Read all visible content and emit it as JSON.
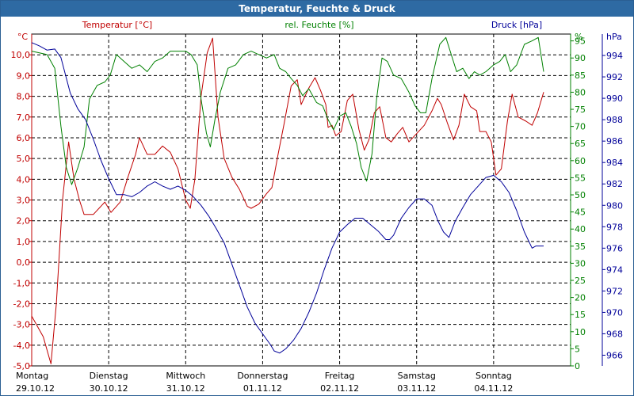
{
  "window": {
    "title": "Temperatur, Feuchte & Druck"
  },
  "chart_data": {
    "type": "line",
    "title": "Temperatur, Feuchte & Druck",
    "colors": {
      "temperature": "#c00000",
      "humidity": "#008000",
      "pressure": "#000099",
      "grid": "#000000"
    },
    "axes": {
      "temperature": {
        "label": "Temperatur [°C]",
        "unit": "°C",
        "ylim": [
          -5.0,
          11.0
        ],
        "ticks": [
          "10,0",
          "9,0",
          "8,0",
          "7,0",
          "6,0",
          "5,0",
          "4,0",
          "3,0",
          "2,0",
          "1,0",
          "0,0",
          "-1,0",
          "-2,0",
          "-3,0",
          "-4,0",
          "-5,0"
        ],
        "tick_values": [
          10,
          9,
          8,
          7,
          6,
          5,
          4,
          3,
          2,
          1,
          0,
          -1,
          -2,
          -3,
          -4,
          -5
        ]
      },
      "humidity": {
        "label": "rel. Feuchte [%]",
        "unit": "%",
        "ylim": [
          0,
          97
        ],
        "ticks": [
          "95",
          "90",
          "85",
          "80",
          "75",
          "70",
          "65",
          "60",
          "55",
          "50",
          "45",
          "40",
          "35",
          "30",
          "25",
          "20",
          "15",
          "10",
          "5",
          "0"
        ],
        "tick_values": [
          95,
          90,
          85,
          80,
          75,
          70,
          65,
          60,
          55,
          50,
          45,
          40,
          35,
          30,
          25,
          20,
          15,
          10,
          5,
          0
        ]
      },
      "pressure": {
        "label": "Druck [hPa]",
        "unit": "hPa",
        "ylim": [
          965,
          996
        ],
        "ticks": [
          "994",
          "992",
          "990",
          "988",
          "986",
          "984",
          "982",
          "980",
          "978",
          "976",
          "974",
          "972",
          "970",
          "968",
          "966"
        ],
        "tick_values": [
          994,
          992,
          990,
          988,
          986,
          984,
          982,
          980,
          978,
          976,
          974,
          972,
          970,
          968,
          966
        ]
      }
    },
    "x": {
      "range": [
        0,
        7
      ],
      "grid": [
        1,
        2,
        3,
        4,
        5,
        6
      ],
      "days": [
        {
          "day": "Montag",
          "date": "29.10.12",
          "pos": 0
        },
        {
          "day": "Dienstag",
          "date": "30.10.12",
          "pos": 1
        },
        {
          "day": "Mittwoch",
          "date": "31.10.12",
          "pos": 2
        },
        {
          "day": "Donnerstag",
          "date": "01.11.12",
          "pos": 3
        },
        {
          "day": "Freitag",
          "date": "02.11.12",
          "pos": 4
        },
        {
          "day": "Samstag",
          "date": "03.11.12",
          "pos": 5
        },
        {
          "day": "Sonntag",
          "date": "04.11.12",
          "pos": 6
        }
      ]
    },
    "series": [
      {
        "name": "Temperatur",
        "axis": "temperature",
        "points": [
          [
            0,
            -2.6
          ],
          [
            0.15,
            -3.6
          ],
          [
            0.25,
            -4.9
          ],
          [
            0.32,
            -2
          ],
          [
            0.4,
            3
          ],
          [
            0.48,
            5.8
          ],
          [
            0.55,
            4
          ],
          [
            0.62,
            3
          ],
          [
            0.68,
            2.3
          ],
          [
            0.8,
            2.3
          ],
          [
            0.95,
            2.9
          ],
          [
            1.03,
            2.4
          ],
          [
            1.15,
            2.9
          ],
          [
            1.25,
            4.1
          ],
          [
            1.35,
            5.2
          ],
          [
            1.4,
            6.0
          ],
          [
            1.5,
            5.2
          ],
          [
            1.6,
            5.2
          ],
          [
            1.7,
            5.6
          ],
          [
            1.8,
            5.3
          ],
          [
            1.9,
            4.5
          ],
          [
            2.0,
            3.0
          ],
          [
            2.06,
            2.6
          ],
          [
            2.12,
            4
          ],
          [
            2.2,
            8
          ],
          [
            2.28,
            10.1
          ],
          [
            2.35,
            10.8
          ],
          [
            2.42,
            7
          ],
          [
            2.5,
            5
          ],
          [
            2.6,
            4.1
          ],
          [
            2.7,
            3.5
          ],
          [
            2.8,
            2.7
          ],
          [
            2.85,
            2.6
          ],
          [
            2.95,
            2.8
          ],
          [
            3.05,
            3.3
          ],
          [
            3.12,
            3.6
          ],
          [
            3.2,
            5.2
          ],
          [
            3.28,
            6.7
          ],
          [
            3.37,
            8.5
          ],
          [
            3.45,
            8.8
          ],
          [
            3.5,
            7.6
          ],
          [
            3.6,
            8.4
          ],
          [
            3.68,
            8.9
          ],
          [
            3.75,
            8.3
          ],
          [
            3.82,
            7.6
          ],
          [
            3.85,
            6.5
          ],
          [
            3.9,
            6.6
          ],
          [
            3.95,
            6.1
          ],
          [
            4.02,
            6.3
          ],
          [
            4.1,
            7.8
          ],
          [
            4.17,
            8.1
          ],
          [
            4.25,
            6.4
          ],
          [
            4.32,
            5.4
          ],
          [
            4.38,
            5.9
          ],
          [
            4.45,
            7.2
          ],
          [
            4.52,
            7.5
          ],
          [
            4.6,
            6.0
          ],
          [
            4.67,
            5.8
          ],
          [
            4.75,
            6.2
          ],
          [
            4.82,
            6.5
          ],
          [
            4.9,
            5.8
          ],
          [
            5.0,
            6.2
          ],
          [
            5.1,
            6.6
          ],
          [
            5.2,
            7.3
          ],
          [
            5.27,
            7.9
          ],
          [
            5.32,
            7.6
          ],
          [
            5.4,
            6.7
          ],
          [
            5.48,
            5.9
          ],
          [
            5.55,
            6.6
          ],
          [
            5.62,
            8.1
          ],
          [
            5.7,
            7.5
          ],
          [
            5.78,
            7.3
          ],
          [
            5.82,
            6.3
          ],
          [
            5.9,
            6.3
          ],
          [
            5.97,
            5.8
          ],
          [
            6.03,
            4.2
          ],
          [
            6.1,
            4.5
          ],
          [
            6.18,
            6.8
          ],
          [
            6.24,
            8.1
          ],
          [
            6.32,
            7.0
          ],
          [
            6.42,
            6.8
          ],
          [
            6.5,
            6.6
          ],
          [
            6.57,
            7.2
          ],
          [
            6.65,
            8.2
          ]
        ]
      },
      {
        "name": "rel. Feuchte",
        "axis": "humidity",
        "points": [
          [
            0,
            92
          ],
          [
            0.2,
            91
          ],
          [
            0.3,
            87
          ],
          [
            0.38,
            70
          ],
          [
            0.45,
            58
          ],
          [
            0.52,
            53
          ],
          [
            0.6,
            58
          ],
          [
            0.68,
            64
          ],
          [
            0.75,
            78
          ],
          [
            0.85,
            82
          ],
          [
            0.95,
            83
          ],
          [
            1.02,
            85
          ],
          [
            1.1,
            91
          ],
          [
            1.2,
            89
          ],
          [
            1.3,
            87
          ],
          [
            1.4,
            88
          ],
          [
            1.5,
            86
          ],
          [
            1.6,
            89
          ],
          [
            1.7,
            90
          ],
          [
            1.8,
            92
          ],
          [
            1.9,
            92
          ],
          [
            2.0,
            92
          ],
          [
            2.07,
            91
          ],
          [
            2.15,
            88
          ],
          [
            2.2,
            78
          ],
          [
            2.27,
            68
          ],
          [
            2.32,
            64
          ],
          [
            2.38,
            72
          ],
          [
            2.45,
            80
          ],
          [
            2.55,
            87
          ],
          [
            2.65,
            88
          ],
          [
            2.75,
            91
          ],
          [
            2.85,
            92
          ],
          [
            2.95,
            91
          ],
          [
            3.05,
            90
          ],
          [
            3.15,
            91
          ],
          [
            3.22,
            87
          ],
          [
            3.3,
            86
          ],
          [
            3.37,
            84
          ],
          [
            3.45,
            82
          ],
          [
            3.52,
            79
          ],
          [
            3.6,
            81
          ],
          [
            3.7,
            77
          ],
          [
            3.78,
            76
          ],
          [
            3.85,
            72
          ],
          [
            3.92,
            69
          ],
          [
            4.0,
            73
          ],
          [
            4.08,
            74
          ],
          [
            4.15,
            70
          ],
          [
            4.22,
            65
          ],
          [
            4.28,
            58
          ],
          [
            4.35,
            54
          ],
          [
            4.42,
            62
          ],
          [
            4.48,
            78
          ],
          [
            4.55,
            90
          ],
          [
            4.62,
            89
          ],
          [
            4.7,
            85
          ],
          [
            4.8,
            84
          ],
          [
            4.9,
            80
          ],
          [
            4.98,
            76
          ],
          [
            5.05,
            74
          ],
          [
            5.12,
            74
          ],
          [
            5.2,
            84
          ],
          [
            5.3,
            94
          ],
          [
            5.38,
            96
          ],
          [
            5.45,
            91
          ],
          [
            5.52,
            86
          ],
          [
            5.6,
            87
          ],
          [
            5.68,
            84
          ],
          [
            5.75,
            86
          ],
          [
            5.82,
            85
          ],
          [
            5.9,
            86
          ],
          [
            6.0,
            88
          ],
          [
            6.08,
            89
          ],
          [
            6.15,
            91
          ],
          [
            6.22,
            86
          ],
          [
            6.3,
            88
          ],
          [
            6.4,
            94
          ],
          [
            6.5,
            95
          ],
          [
            6.58,
            96
          ],
          [
            6.65,
            86
          ]
        ]
      },
      {
        "name": "Druck",
        "axis": "pressure",
        "points": [
          [
            0,
            995.2
          ],
          [
            0.1,
            994.9
          ],
          [
            0.2,
            994.5
          ],
          [
            0.3,
            994.6
          ],
          [
            0.38,
            993.8
          ],
          [
            0.5,
            990.5
          ],
          [
            0.6,
            989
          ],
          [
            0.7,
            988
          ],
          [
            0.8,
            986.2
          ],
          [
            0.9,
            984.2
          ],
          [
            1.0,
            982.5
          ],
          [
            1.1,
            981
          ],
          [
            1.2,
            981
          ],
          [
            1.3,
            980.8
          ],
          [
            1.4,
            981.2
          ],
          [
            1.5,
            981.8
          ],
          [
            1.6,
            982.2
          ],
          [
            1.7,
            981.8
          ],
          [
            1.8,
            981.5
          ],
          [
            1.9,
            981.8
          ],
          [
            2.0,
            981.4
          ],
          [
            2.1,
            980.8
          ],
          [
            2.2,
            980
          ],
          [
            2.3,
            979
          ],
          [
            2.4,
            977.8
          ],
          [
            2.5,
            976.5
          ],
          [
            2.6,
            974.5
          ],
          [
            2.7,
            972.5
          ],
          [
            2.8,
            970.5
          ],
          [
            2.9,
            969
          ],
          [
            3.0,
            968
          ],
          [
            3.1,
            967
          ],
          [
            3.15,
            966.4
          ],
          [
            3.22,
            966.2
          ],
          [
            3.3,
            966.6
          ],
          [
            3.4,
            967.4
          ],
          [
            3.5,
            968.5
          ],
          [
            3.6,
            970
          ],
          [
            3.7,
            971.8
          ],
          [
            3.8,
            974
          ],
          [
            3.9,
            976
          ],
          [
            4.0,
            977.5
          ],
          [
            4.1,
            978.2
          ],
          [
            4.2,
            978.8
          ],
          [
            4.3,
            978.8
          ],
          [
            4.4,
            978.2
          ],
          [
            4.5,
            977.6
          ],
          [
            4.6,
            976.8
          ],
          [
            4.65,
            976.8
          ],
          [
            4.7,
            977.2
          ],
          [
            4.8,
            978.8
          ],
          [
            4.9,
            979.8
          ],
          [
            5.0,
            980.6
          ],
          [
            5.1,
            980.6
          ],
          [
            5.2,
            980
          ],
          [
            5.28,
            978.5
          ],
          [
            5.35,
            977.5
          ],
          [
            5.42,
            977
          ],
          [
            5.5,
            978.5
          ],
          [
            5.6,
            979.8
          ],
          [
            5.7,
            981
          ],
          [
            5.8,
            981.8
          ],
          [
            5.9,
            982.6
          ],
          [
            6.0,
            982.8
          ],
          [
            6.1,
            982.2
          ],
          [
            6.2,
            981.2
          ],
          [
            6.3,
            979.5
          ],
          [
            6.4,
            977.5
          ],
          [
            6.5,
            976
          ],
          [
            6.55,
            976.2
          ],
          [
            6.65,
            976.2
          ]
        ]
      }
    ]
  }
}
